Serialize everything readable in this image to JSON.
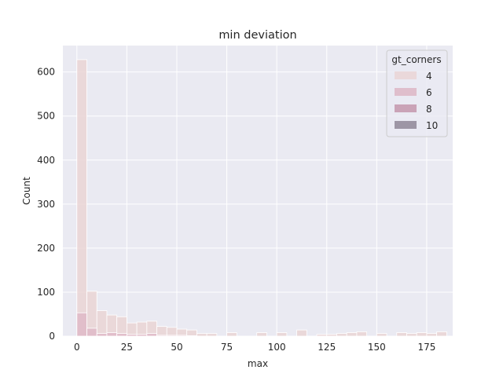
{
  "chart_data": {
    "type": "bar",
    "subtype": "stacked-histogram",
    "title": "min deviation",
    "xlabel": "max",
    "ylabel": "Count",
    "xlim": [
      -7,
      188
    ],
    "ylim": [
      0,
      660
    ],
    "xticks": [
      0,
      25,
      50,
      75,
      100,
      125,
      150,
      175
    ],
    "yticks": [
      0,
      100,
      200,
      300,
      400,
      500,
      600
    ],
    "grid": true,
    "bins": {
      "start": 0,
      "width": 5
    },
    "legend": {
      "title": "gt_corners",
      "placement": "top-right",
      "entries": [
        "4",
        "6",
        "8",
        "10"
      ]
    },
    "series": [
      {
        "name": "4",
        "color": "#ead5d5",
        "values": [
          628,
          102,
          58,
          48,
          44,
          30,
          32,
          34,
          22,
          20,
          16,
          14,
          6,
          6,
          0,
          8,
          0,
          0,
          8,
          0,
          8,
          0,
          14,
          0,
          4,
          4,
          6,
          8,
          10,
          0,
          6,
          0,
          8,
          6,
          8,
          6,
          10
        ]
      },
      {
        "name": "6",
        "color": "#ddb6c4",
        "values": [
          53,
          18,
          6,
          8,
          6,
          4,
          4,
          6,
          2,
          2,
          2,
          1,
          0,
          0,
          0,
          0,
          0,
          0,
          0,
          0,
          0,
          0,
          0,
          0,
          0,
          0,
          0,
          0,
          0,
          0,
          0,
          0,
          0,
          0,
          0,
          0,
          0
        ]
      },
      {
        "name": "8",
        "color": "#c496ac",
        "values": []
      },
      {
        "name": "10",
        "color": "#8f8797",
        "values": []
      }
    ]
  },
  "colors": {
    "plot_background": "#eaeaf2",
    "grid": "#ffffff",
    "bar_edge": "#ffffff"
  }
}
